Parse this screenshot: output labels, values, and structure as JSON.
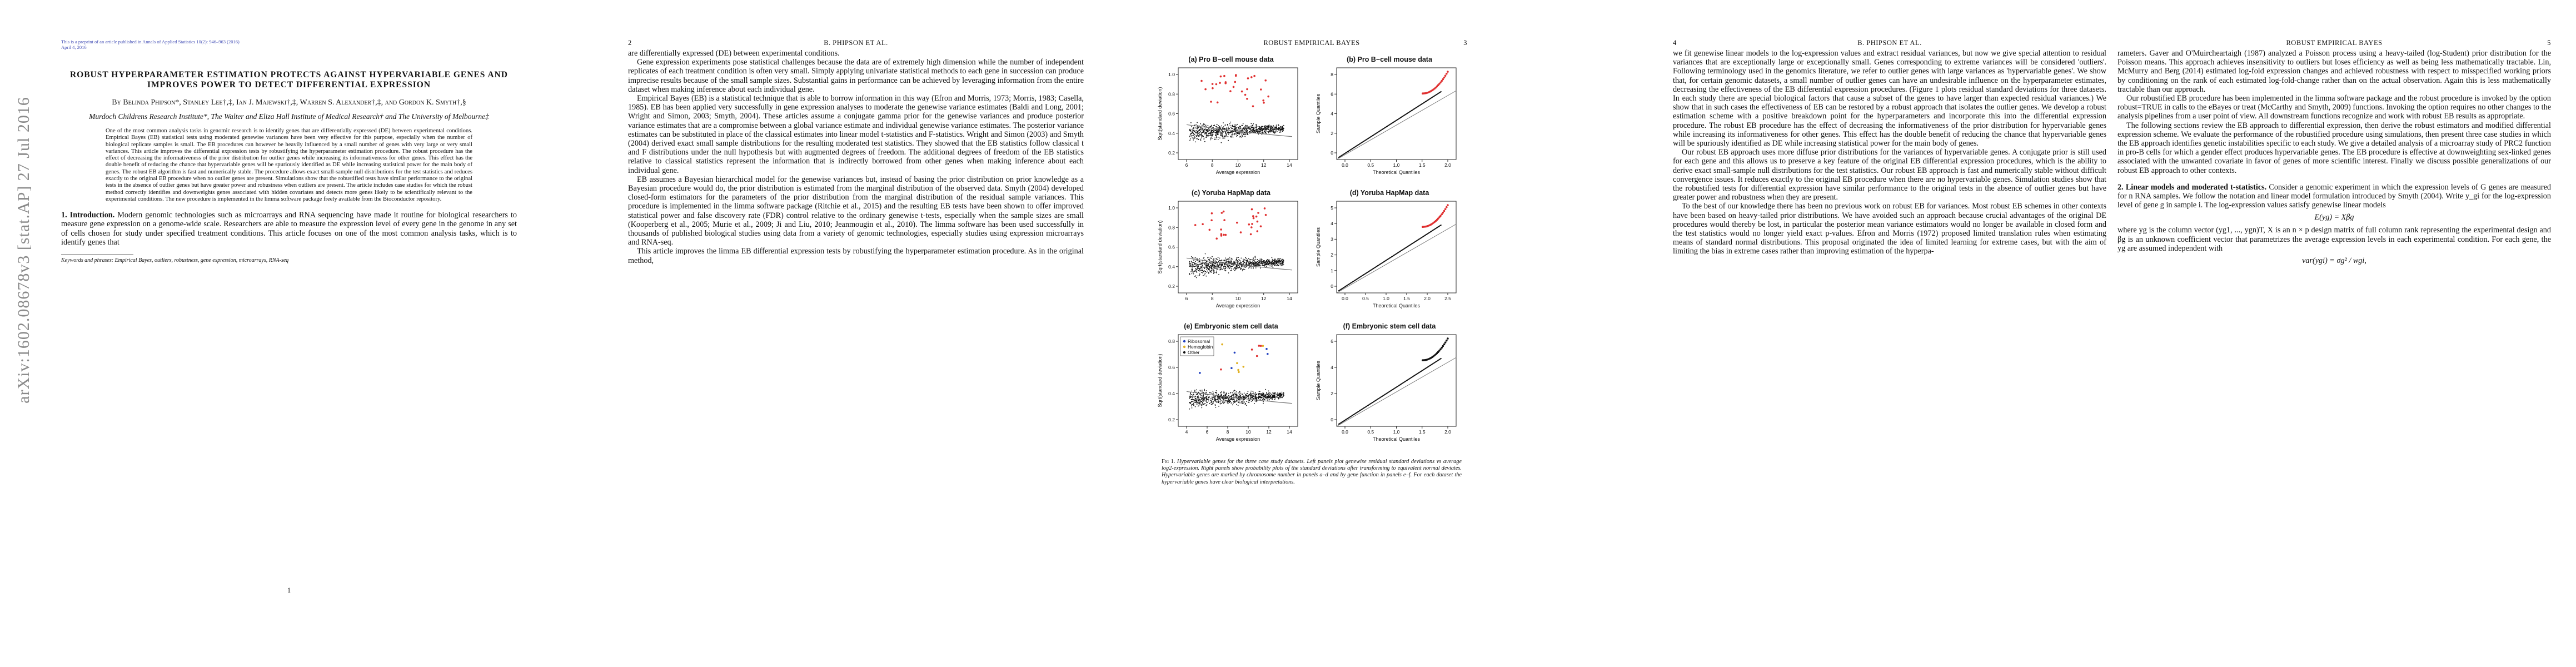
{
  "arxiv_id": "arXiv:1602.08678v3  [stat.AP]  27 Jul 2016",
  "page1": {
    "preprint_note": "This is a preprint of an article published in Annals of Applied Statistics 10(2): 946–963 (2016)",
    "date_note": "April 4, 2016",
    "title": "ROBUST HYPERPARAMETER ESTIMATION PROTECTS AGAINST HYPERVARIABLE GENES AND IMPROVES POWER TO DETECT DIFFERENTIAL EXPRESSION",
    "authors": "By Belinda Phipson*, Stanley Lee†,‡, Ian J. Majewski†,‡, Warren S. Alexander†,‡, and Gordon K. Smyth†,§",
    "affiliation": "Murdoch Childrens Research Institute*, The Walter and Eliza Hall Institute of Medical Research† and The University of Melbourne‡",
    "abstract": "One of the most common analysis tasks in genomic research is to identify genes that are differentially expressed (DE) between experimental conditions. Empirical Bayes (EB) statistical tests using moderated genewise variances have been very effective for this purpose, especially when the number of biological replicate samples is small. The EB procedures can however be heavily influenced by a small number of genes with very large or very small variances. This article improves the differential expression tests by robustifying the hyperparameter estimation procedure. The robust procedure has the effect of decreasing the informativeness of the prior distribution for outlier genes while increasing its informativeness for other genes. This effect has the double benefit of reducing the chance that hypervariable genes will be spuriously identified as DE while increasing statistical power for the main body of genes. The robust EB algorithm is fast and numerically stable. The procedure allows exact small-sample null distributions for the test statistics and reduces exactly to the original EB procedure when no outlier genes are present. Simulations show that the robustified tests have similar performance to the original tests in the absence of outlier genes but have greater power and robustness when outliers are present. The article includes case studies for which the robust method correctly identifies and downweights genes associated with hidden covariates and detects more genes likely to be scientifically relevant to the experimental conditions. The new procedure is implemented in the limma software package freely available from the Bioconductor repository.",
    "intro_heading": "1. Introduction.",
    "intro_text": "Modern genomic technologies such as microarrays and RNA sequencing have made it routine for biological researchers to measure gene expression on a genome-wide scale. Researchers are able to measure the expression level of every gene in the genome in any set of cells chosen for study under specified treatment conditions. This article focuses on one of the most common analysis tasks, which is to identify genes that",
    "footnote": "Keywords and phrases: Empirical Bayes, outliers, robustness, gene expression, microarrays, RNA-seq",
    "page_number": "1"
  },
  "page2": {
    "running_num": "2",
    "running_head": "B. PHIPSON ET AL.",
    "paragraphs": [
      "are differentially expressed (DE) between experimental conditions.",
      "Gene expression experiments pose statistical challenges because the data are of extremely high dimension while the number of independent replicates of each treatment condition is often very small. Simply applying univariate statistical methods to each gene in succession can produce imprecise results because of the small sample sizes. Substantial gains in performance can be achieved by leveraging information from the entire dataset when making inference about each individual gene.",
      "Empirical Bayes (EB) is a statistical technique that is able to borrow information in this way (Efron and Morris, 1973; Morris, 1983; Casella, 1985). EB has been applied very successfully in gene expression analyses to moderate the genewise variance estimates (Baldi and Long, 2001; Wright and Simon, 2003; Smyth, 2004). These articles assume a conjugate gamma prior for the genewise variances and produce posterior variance estimates that are a compromise between a global variance estimate and individual genewise variance estimates. The posterior variance estimates can be substituted in place of the classical estimates into linear model t-statistics and F-statistics. Wright and Simon (2003) and Smyth (2004) derived exact small sample distributions for the resulting moderated test statistics. They showed that the EB statistics follow classical t and F distributions under the null hypothesis but with augmented degrees of freedom. The additional degrees of freedom of the EB statistics relative to classical statistics represent the information that is indirectly borrowed from other genes when making inference about each individual gene.",
      "EB assumes a Bayesian hierarchical model for the genewise variances but, instead of basing the prior distribution on prior knowledge as a Bayesian procedure would do, the prior distribution is estimated from the marginal distribution of the observed data. Smyth (2004) developed closed-form estimators for the parameters of the prior distribution from the marginal distribution of the residual sample variances. This procedure is implemented in the limma software package (Ritchie et al., 2015) and the resulting EB tests have been shown to offer improved statistical power and false discovery rate (FDR) control relative to the ordinary genewise t-tests, especially when the sample sizes are small (Kooperberg et al., 2005; Murie et al., 2009; Ji and Liu, 2010; Jeanmougin et al., 2010). The limma software has been used successfully in thousands of published biological studies using data from a variety of genomic technologies, especially studies using expression microarrays and RNA-seq.",
      "This article improves the limma EB differential expression tests by robustifying the hyperparameter estimation procedure. As in the original method,"
    ]
  },
  "page3": {
    "running_head": "ROBUST EMPIRICAL BAYES",
    "running_num": "3",
    "panels": [
      {
        "title": "(a) Pro B−cell mouse data",
        "xlabel": "Average expression",
        "ylabel": "Sqrt(standard deviation)",
        "xticks": [
          "6",
          "8",
          "10",
          "12",
          "14"
        ],
        "yticks": [
          "0.2",
          "0.4",
          "0.6",
          "0.8",
          "1.0"
        ]
      },
      {
        "title": "(b) Pro B−cell mouse data",
        "xlabel": "Theoretical Quantiles",
        "ylabel": "Sample Quantiles",
        "xticks": [
          "0.0",
          "0.5",
          "1.0",
          "1.5",
          "2.0"
        ],
        "yticks": [
          "0",
          "2",
          "4",
          "6",
          "8"
        ]
      },
      {
        "title": "(c) Yoruba HapMap data",
        "xlabel": "Average expression",
        "ylabel": "Sqrt(standard deviation)",
        "xticks": [
          "6",
          "8",
          "10",
          "12",
          "14"
        ],
        "yticks": [
          "0.2",
          "0.4",
          "0.6",
          "0.8",
          "1.0"
        ]
      },
      {
        "title": "(d) Yoruba HapMap data",
        "xlabel": "Theoretical Quantiles",
        "ylabel": "Sample Quantiles",
        "xticks": [
          "0.0",
          "0.5",
          "1.0",
          "1.5",
          "2.0",
          "2.5"
        ],
        "yticks": [
          "0",
          "1",
          "2",
          "3",
          "4",
          "5"
        ]
      },
      {
        "title": "(e) Embryonic stem cell data",
        "xlabel": "Average expression",
        "ylabel": "Sqrt(standard deviation)",
        "xticks": [
          "4",
          "6",
          "8",
          "10",
          "12",
          "14"
        ],
        "yticks": [
          "0.2",
          "0.4",
          "0.6",
          "0.8"
        ],
        "legend": [
          "Ribosomal",
          "Hemoglobin",
          "Other"
        ]
      },
      {
        "title": "(f) Embryonic stem cell data",
        "xlabel": "Theoretical Quantiles",
        "ylabel": "Sample Quantiles",
        "xticks": [
          "0.0",
          "0.5",
          "1.0",
          "1.5",
          "2.0"
        ],
        "yticks": [
          "0",
          "2",
          "4",
          "6"
        ]
      }
    ],
    "caption_lead": "Fig 1.",
    "caption_text": "Hypervariable genes for the three case study datasets. Left panels plot genewise residual standard deviations vs average log2-expression. Right panels show probability plots of the standard deviations after transforming to equivalent normal deviates. Hypervariable genes are marked by chromosome number in panels a–d and by gene function in panels e–f. For each dataset the hypervariable genes have clear biological interpretations.",
    "colors": {
      "points": "#111111",
      "outliers": "#e03030",
      "ribosomal": "#1f3fbf",
      "hemoglobin": "#e0b020",
      "trend": "#777777"
    }
  },
  "page4": {
    "running_num": "4",
    "running_head": "B. PHIPSON ET AL.",
    "paragraphs": [
      "we fit genewise linear models to the log-expression values and extract residual variances, but now we give special attention to residual variances that are exceptionally large or exceptionally small. Genes corresponding to extreme variances will be considered 'outliers'. Following terminology used in the genomics literature, we refer to outlier genes with large variances as 'hypervariable genes'. We show that, for certain genomic datasets, a small number of outlier genes can have an undesirable influence on the hyperparameter estimates, decreasing the effectiveness of the EB differential expression procedures. (Figure 1 plots residual standard deviations for three datasets. In each study there are special biological factors that cause a subset of the genes to have larger than expected residual variances.) We show that in such cases the effectiveness of EB can be restored by a robust approach that isolates the outlier genes. We develop a robust estimation scheme with a positive breakdown point for the hyperparameters and incorporate this into the differential expression procedure. The robust EB procedure has the effect of decreasing the informativeness of the prior distribution for hypervariable genes while increasing its informativeness for other genes. This effect has the double benefit of reducing the chance that hypervariable genes will be spuriously identified as DE while increasing statistical power for the main body of genes.",
      "Our robust EB approach uses more diffuse prior distributions for the variances of hypervariable genes. A conjugate prior is still used for each gene and this allows us to preserve a key feature of the original EB differential expression procedures, which is the ability to derive exact small-sample null distributions for the test statistics. Our robust EB approach is fast and numerically stable without difficult convergence issues. It reduces exactly to the original EB procedure when there are no hypervariable genes. Simulation studies show that the robustified tests for differential expression have similar performance to the original tests in the absence of outlier genes but have greater power and robustness when they are present.",
      "To the best of our knowledge there has been no previous work on robust EB for variances. Most robust EB schemes in other contexts have been based on heavy-tailed prior distributions. We have avoided such an approach because crucial advantages of the original DE procedures would thereby be lost, in particular the posterior mean variance estimators would no longer be available in closed form and the test statistics would no longer yield exact p-values. Efron and Morris (1972) proposed limited translation rules when estimating means of standard normal distributions. This proposal originated the idea of limited learning for extreme cases, but with the aim of limiting the bias in extreme cases rather than improving estimation of the hyperpa-"
    ]
  },
  "page5": {
    "running_head": "ROBUST EMPIRICAL BAYES",
    "running_num": "5",
    "paragraphs": [
      "rameters. Gaver and O'Muircheartaigh (1987) analyzed a Poisson process using a heavy-tailed (log-Student) prior distribution for the Poisson means. This approach achieves insensitivity to outliers but loses efficiency as well as being less mathematically tractable. Lin, McMurry and Berg (2014) estimated log-fold expression changes and achieved robustness with respect to misspecified working priors by conditioning on the rank of each estimated log-fold-change rather than on the actual observation. Again this is less mathematically tractable than our approach.",
      "Our robustified EB procedure has been implemented in the limma software package and the robust procedure is invoked by the option robust=TRUE in calls to the eBayes or treat (McCarthy and Smyth, 2009) functions. Invoking the option requires no other changes to the analysis pipelines from a user point of view. All downstream functions recognize and work with robust EB results as appropriate.",
      "The following sections review the EB approach to differential expression, then derive the robust estimators and modified differential expression scheme. We evaluate the performance of the robustified procedure using simulations, then present three case studies in which the EB approach identifies genetic instabilities specific to each study. We give a detailed analysis of a microarray study of PRC2 function in pro-B cells for which a gender effect produces hypervariable genes. The EB procedure is effective at downweighting sex-linked genes associated with the unwanted covariate in favor of genes of more scientific interest. Finally we discuss possible generalizations of our robust EB approach to other contexts."
    ],
    "section_heading": "2. Linear models and moderated t-statistics.",
    "section_text": "Consider a genomic experiment in which the expression levels of G genes are measured for n RNA samples. We follow the notation and linear model formulation introduced by Smyth (2004). Write y_gi for the log-expression level of gene g in sample i. The log-expression values satisfy genewise linear models",
    "equation1": "E(yg) = Xβg",
    "post_eq": "where yg is the column vector (yg1, ..., ygn)T, X is an n × p design matrix of full column rank representing the experimental design and βg is an unknown coefficient vector that parametrizes the average expression levels in each experimental condition. For each gene, the yg are assumed independent with",
    "equation2": "var(ygi) = σg² / wgi,"
  }
}
